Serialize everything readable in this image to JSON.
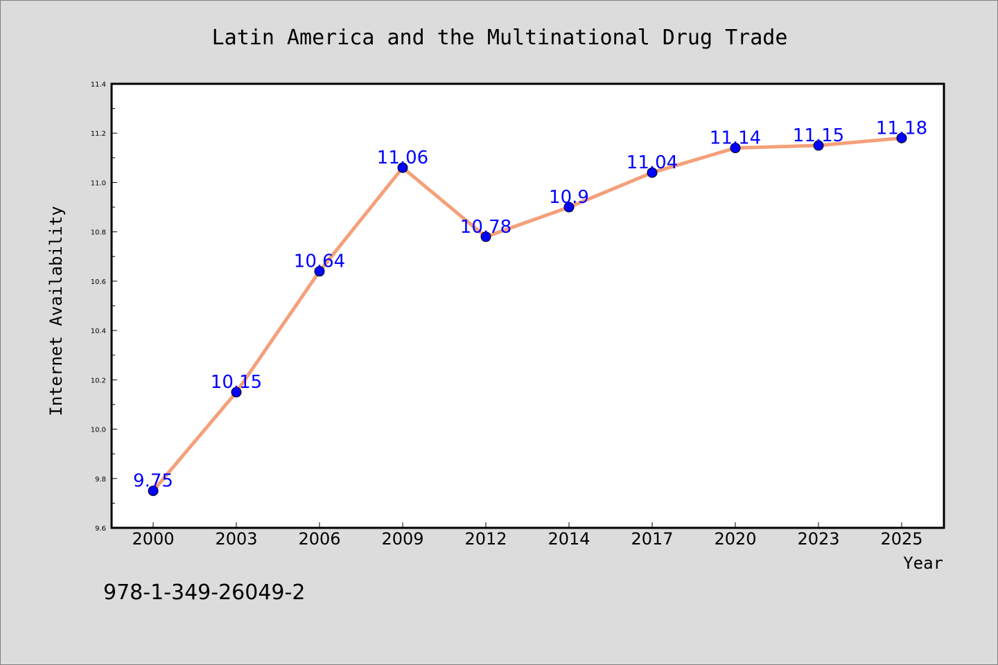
{
  "chart_data": {
    "type": "line",
    "title": "Latin America and the Multinational Drug Trade",
    "xlabel": "Year",
    "ylabel": "Internet Availability",
    "categories": [
      "2000",
      "2003",
      "2006",
      "2009",
      "2012",
      "2014",
      "2017",
      "2020",
      "2023",
      "2025"
    ],
    "series": [
      {
        "values": [
          9.75,
          10.15,
          10.64,
          11.06,
          10.78,
          10.9,
          11.04,
          11.14,
          11.15,
          11.18
        ],
        "labels": [
          "9.75",
          "10.15",
          "10.64",
          "11.06",
          "10.78",
          "10.9",
          "11.04",
          "11.14",
          "11.15",
          "11.18"
        ]
      }
    ],
    "ylim": [
      9.6,
      11.4
    ],
    "yticks": [
      "9.6",
      "9.8",
      "10.0",
      "10.2",
      "10.4",
      "10.6",
      "10.8",
      "11.0",
      "11.2",
      "11.4"
    ],
    "grid": false,
    "line_color": "#f4a07a",
    "marker_color": "#0000ff",
    "label_color": "#0000ff"
  },
  "footer": {
    "isbn": "978-1-349-26049-2"
  }
}
